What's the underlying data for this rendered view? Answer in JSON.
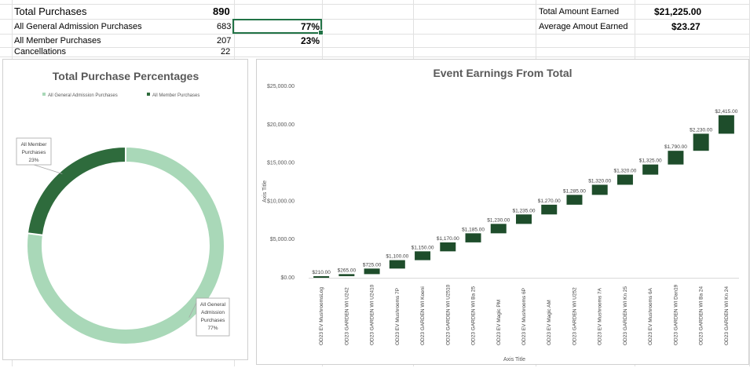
{
  "sheet": {
    "rows": [
      {
        "label": "Total Purchases",
        "value": "890"
      },
      {
        "label": "All General Admission Purchases",
        "value": "683",
        "percent": "77%"
      },
      {
        "label": "All Member Purchases",
        "value": "207",
        "percent": "23%"
      },
      {
        "label": "Cancellations",
        "value": "22"
      }
    ],
    "summary": [
      {
        "label": "Total Amount Earned",
        "value": "$21,225.00"
      },
      {
        "label": "Average Amout Earned",
        "value": "$23.27"
      }
    ]
  },
  "chart_data": [
    {
      "type": "pie",
      "title": "Total Purchase Percentages",
      "categories": [
        "All General Admission Purchases",
        "All Member Purchases"
      ],
      "values": [
        77,
        23
      ],
      "data_labels": [
        "All General Admission Purchases 77%",
        "All Member Purchases 23%"
      ],
      "colors": [
        "#a9d8b8",
        "#2e6b3c"
      ],
      "legend_position": "top",
      "style": "doughnut"
    },
    {
      "type": "bar",
      "style": "waterfall",
      "title": "Event Earnings From Total",
      "xlabel": "Axis Title",
      "ylabel": "Axis Title",
      "ylim": [
        0,
        25000
      ],
      "yticks": [
        "$0.00",
        "$5,000.00",
        "$10,000.00",
        "$15,000.00",
        "$20,000.00",
        "$25,000.00"
      ],
      "categories": [
        "OD23 EV MushroomsLog",
        "OD23 GARDEN WI U242",
        "OD23 GARDEN WI U2410",
        "OD23 EV Mushrooms 7P",
        "OD23 GARDEN WI Koeni",
        "OD23 GARDEN WI U2510",
        "OD23 GARDEN WI Ba 25",
        "OD23 EV Magic PM",
        "OD23 EV Mushrooms 6P",
        "OD23 EV Magic AM",
        "OD23 GARDEN WI U252",
        "OD23 EV Mushrooms 7A",
        "OD23 GARDEN WI Kn 25",
        "OD23 EV Mushrooms 6A",
        "OD23 GARDEN WI Dan19",
        "OD23 GARDEN WI Ba 24",
        "OD23 GARDEN WI Kn 24"
      ],
      "values": [
        210,
        265,
        725,
        1100,
        1150,
        1170,
        1185,
        1230,
        1235,
        1270,
        1285,
        1320,
        1320,
        1325,
        1790,
        2230,
        2415
      ],
      "data_labels": [
        "$210.00",
        "$265.00",
        "$725.00",
        "$1,100.00",
        "$1,150.00",
        "$1,170.00",
        "$1,185.00",
        "$1,230.00",
        "$1,235.00",
        "$1,270.00",
        "$1,285.00",
        "$1,320.00",
        "$1,320.00",
        "$1,325.00",
        "$1,790.00",
        "$2,230.00",
        "$2,415.00"
      ],
      "color": "#1e4d2b",
      "grid": false
    }
  ]
}
